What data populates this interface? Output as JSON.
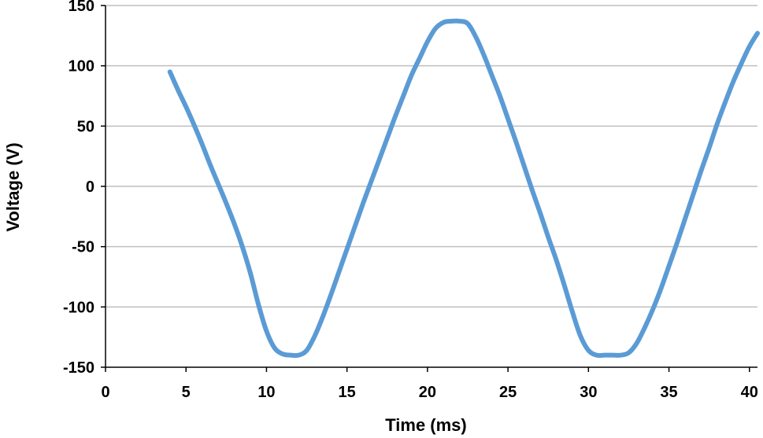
{
  "chart_data": {
    "type": "line",
    "title": "",
    "xlabel": "Time (ms)",
    "ylabel": "Voltage (V)",
    "xlim": [
      0,
      40.5
    ],
    "ylim": [
      -150,
      150
    ],
    "x_ticks": [
      0,
      5,
      10,
      15,
      20,
      25,
      30,
      35,
      40
    ],
    "x_tick_labels": [
      "0",
      "5",
      "10",
      "15",
      "20",
      "25",
      "30",
      "35",
      "40"
    ],
    "y_ticks": [
      -150,
      -100,
      -50,
      0,
      50,
      100,
      150
    ],
    "y_tick_labels": [
      "-150",
      "-100",
      "-50",
      "0",
      "50",
      "100",
      "150"
    ],
    "grid": true,
    "legend": "none",
    "colors": {
      "series": "#5B9BD5",
      "grid": "#BFBFBF",
      "axis": "#000000"
    },
    "series": [
      {
        "points": [
          [
            4.0,
            95
          ],
          [
            4.5,
            80
          ],
          [
            5.0,
            66
          ],
          [
            5.5,
            51
          ],
          [
            6.0,
            35
          ],
          [
            6.5,
            18
          ],
          [
            7.0,
            2
          ],
          [
            7.5,
            -14
          ],
          [
            8.0,
            -31
          ],
          [
            8.5,
            -50
          ],
          [
            9.0,
            -72
          ],
          [
            9.5,
            -98
          ],
          [
            10.0,
            -120
          ],
          [
            10.5,
            -134
          ],
          [
            11.0,
            -139
          ],
          [
            11.5,
            -140
          ],
          [
            12.0,
            -140
          ],
          [
            12.5,
            -136
          ],
          [
            13.0,
            -124
          ],
          [
            13.5,
            -108
          ],
          [
            14.0,
            -90
          ],
          [
            14.5,
            -71
          ],
          [
            15.0,
            -52
          ],
          [
            15.5,
            -33
          ],
          [
            16.0,
            -14
          ],
          [
            16.5,
            4
          ],
          [
            17.0,
            22
          ],
          [
            17.5,
            40
          ],
          [
            18.0,
            58
          ],
          [
            18.5,
            75
          ],
          [
            19.0,
            92
          ],
          [
            19.5,
            106
          ],
          [
            20.0,
            120
          ],
          [
            20.5,
            131
          ],
          [
            21.0,
            136
          ],
          [
            21.5,
            137
          ],
          [
            22.0,
            137
          ],
          [
            22.5,
            135
          ],
          [
            23.0,
            124
          ],
          [
            23.5,
            109
          ],
          [
            24.0,
            92
          ],
          [
            24.5,
            75
          ],
          [
            25.0,
            56
          ],
          [
            25.5,
            37
          ],
          [
            26.0,
            17
          ],
          [
            26.5,
            -3
          ],
          [
            27.0,
            -22
          ],
          [
            27.5,
            -42
          ],
          [
            28.0,
            -61
          ],
          [
            28.5,
            -82
          ],
          [
            29.0,
            -104
          ],
          [
            29.5,
            -124
          ],
          [
            30.0,
            -136
          ],
          [
            30.5,
            -140
          ],
          [
            31.0,
            -140
          ],
          [
            31.5,
            -140
          ],
          [
            32.0,
            -140
          ],
          [
            32.5,
            -138
          ],
          [
            33.0,
            -130
          ],
          [
            33.5,
            -117
          ],
          [
            34.0,
            -102
          ],
          [
            34.5,
            -85
          ],
          [
            35.0,
            -66
          ],
          [
            35.5,
            -47
          ],
          [
            36.0,
            -27
          ],
          [
            36.5,
            -7
          ],
          [
            37.0,
            13
          ],
          [
            37.5,
            32
          ],
          [
            38.0,
            52
          ],
          [
            38.5,
            70
          ],
          [
            39.0,
            87
          ],
          [
            39.5,
            102
          ],
          [
            40.0,
            116
          ],
          [
            40.5,
            127
          ]
        ]
      }
    ]
  }
}
